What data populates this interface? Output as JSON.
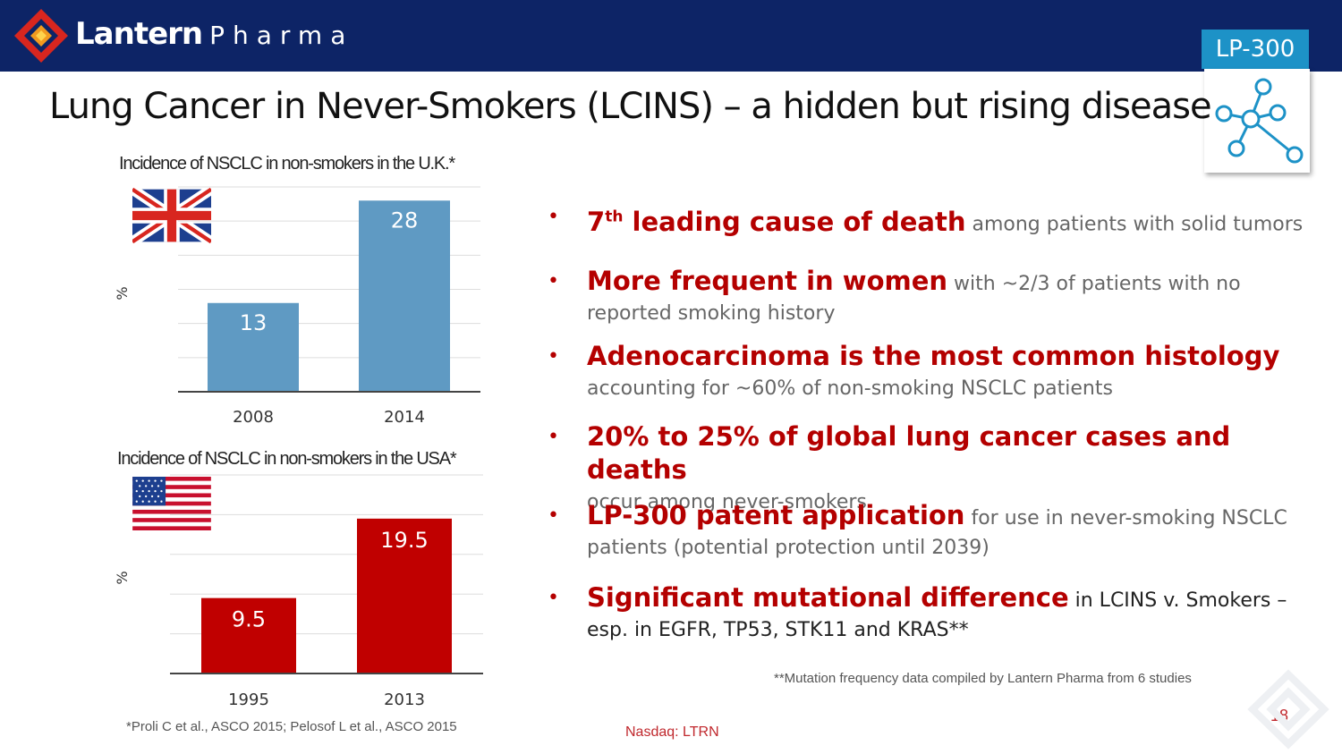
{
  "header": {
    "brand": "Lantern",
    "brand_sub": "Pharma",
    "badge": "LP-300",
    "logo_icon": "lantern-diamond-logo-icon",
    "badge_icon": "molecule-network-icon",
    "bg_color": "#0d2466",
    "badge_color": "#1d92c7"
  },
  "title": "Lung Cancer in Never-Smokers (LCINS) – a hidden but rising disease",
  "chart_data": [
    {
      "type": "bar",
      "title": "Incidence of NSCLC in non-smokers in the U.K.*",
      "categories": [
        "2008",
        "2014"
      ],
      "values": [
        13,
        28
      ],
      "value_labels": [
        "13",
        "28"
      ],
      "ylabel": "%",
      "ylim": [
        0,
        30
      ],
      "grid": true,
      "bar_color": "#5f9ac3",
      "flag_icon": "uk-flag-icon"
    },
    {
      "type": "bar",
      "title": "Incidence of NSCLC in non-smokers in the USA*",
      "categories": [
        "1995",
        "2013"
      ],
      "values": [
        9.5,
        19.5
      ],
      "value_labels": [
        "9.5",
        "19.5"
      ],
      "ylabel": "%",
      "ylim": [
        0,
        25
      ],
      "grid": true,
      "bar_color": "#c00000",
      "flag_icon": "usa-flag-icon"
    }
  ],
  "chart_footnote": "*Proli C et al., ASCO 2015; Pelosof L et al., ASCO 2015",
  "bullets": [
    {
      "strong": "7",
      "sup": "th",
      "strong_rest": " leading cause of death",
      "rest": " among patients with solid tumors"
    },
    {
      "strong": "More frequent in women",
      "rest": " with ~2/3 of patients with no reported smoking history"
    },
    {
      "strong": "Adenocarcinoma is the most common histology",
      "rest": "accounting for ~60% of non-smoking NSCLC patients"
    },
    {
      "strong": "20% to 25% of global lung cancer cases and deaths",
      "rest": "occur among never-smokers"
    },
    {
      "strong": "LP-300 patent application",
      "rest": " for use in never-smoking NSCLC patients (potential protection until 2039)"
    },
    {
      "strong": "Significant mutational difference",
      "rest": " in LCINS v. Smokers – esp. in EGFR, TP53, STK11 and KRAS**"
    }
  ],
  "bullet_marker": "•",
  "mutation_footnote": "**Mutation frequency data compiled by Lantern Pharma from 6 studies",
  "footer": {
    "ticker": "Nasdaq: LTRN",
    "page": "18"
  },
  "accent_color": "#b40000"
}
